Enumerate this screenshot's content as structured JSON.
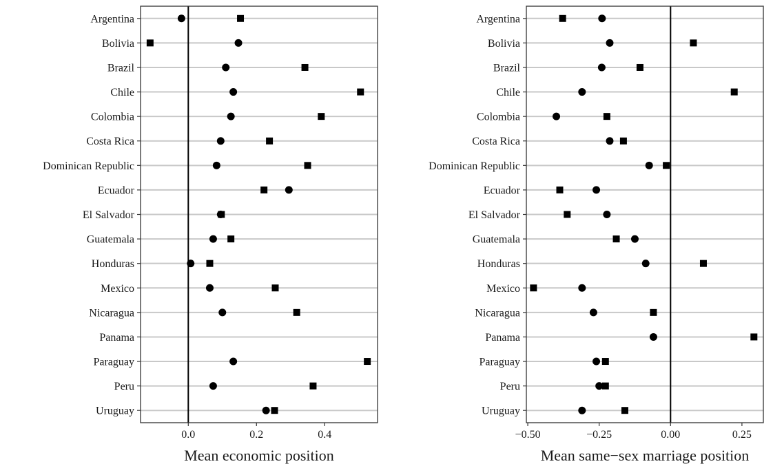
{
  "chart_data": [
    {
      "type": "scatter",
      "title": "",
      "xlabel": "Mean economic position",
      "ylabel": "",
      "xlim": [
        -0.14,
        0.555
      ],
      "xticks": [
        0.0,
        0.2,
        0.4
      ],
      "xtick_labels": [
        "0.0",
        "0.2",
        "0.4"
      ],
      "reference_line_x": 0.0,
      "grid": "horizontal",
      "categories": [
        "Argentina",
        "Bolivia",
        "Brazil",
        "Chile",
        "Colombia",
        "Costa Rica",
        "Dominican Republic",
        "Ecuador",
        "El Salvador",
        "Guatemala",
        "Honduras",
        "Mexico",
        "Nicaragua",
        "Panama",
        "Paraguay",
        "Peru",
        "Uruguay"
      ],
      "series": [
        {
          "marker": "circle",
          "values": [
            -0.02,
            0.147,
            0.11,
            0.132,
            0.125,
            0.095,
            0.083,
            0.295,
            0.095,
            0.073,
            0.007,
            0.063,
            0.1,
            null,
            0.132,
            0.073,
            0.228
          ]
        },
        {
          "marker": "square",
          "values": [
            0.153,
            -0.112,
            0.342,
            0.505,
            0.39,
            0.238,
            0.35,
            0.222,
            0.097,
            0.125,
            0.063,
            0.255,
            0.318,
            null,
            0.525,
            0.366,
            0.253
          ]
        }
      ]
    },
    {
      "type": "scatter",
      "title": "",
      "xlabel": "Mean same−sex marriage position",
      "ylabel": "",
      "xlim": [
        -0.505,
        0.325
      ],
      "xticks": [
        -0.5,
        -0.25,
        0.0,
        0.25
      ],
      "xtick_labels": [
        "−0.50",
        "−0.25",
        "0.00",
        "0.25"
      ],
      "reference_line_x": 0.0,
      "grid": "horizontal",
      "categories": [
        "Argentina",
        "Bolivia",
        "Brazil",
        "Chile",
        "Colombia",
        "Costa Rica",
        "Dominican Republic",
        "Ecuador",
        "El Salvador",
        "Guatemala",
        "Honduras",
        "Mexico",
        "Nicaragua",
        "Panama",
        "Paraguay",
        "Peru",
        "Uruguay"
      ],
      "series": [
        {
          "marker": "circle",
          "values": [
            -0.24,
            -0.213,
            -0.241,
            -0.31,
            -0.4,
            -0.213,
            -0.075,
            -0.26,
            -0.223,
            -0.125,
            -0.087,
            -0.31,
            -0.27,
            -0.06,
            -0.26,
            -0.25,
            -0.31
          ]
        },
        {
          "marker": "square",
          "values": [
            -0.378,
            0.08,
            -0.107,
            0.223,
            -0.223,
            -0.165,
            -0.015,
            -0.388,
            -0.362,
            -0.19,
            0.115,
            -0.48,
            -0.06,
            0.292,
            -0.228,
            -0.228,
            -0.16
          ]
        }
      ]
    }
  ]
}
